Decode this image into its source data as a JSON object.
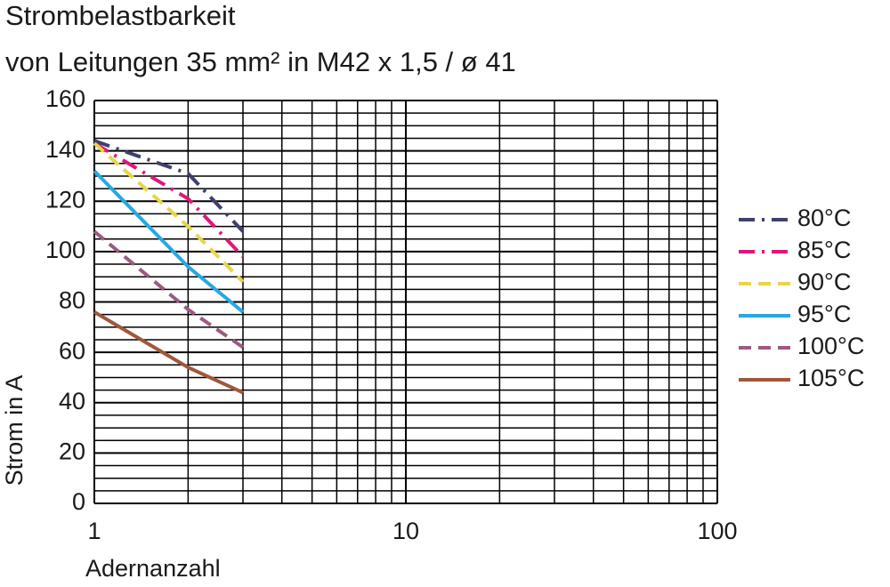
{
  "chart_data": {
    "type": "line",
    "title": "Strombelastbarkeit",
    "subtitle": "von Leitungen 35 mm² in M42 x 1,5 / ø 41",
    "xlabel": "Adernanzahl",
    "ylabel": "Strom in A",
    "xscale": "log",
    "xlim": [
      1,
      100
    ],
    "xticks": [
      1,
      10,
      100
    ],
    "xminorticks": [
      2,
      3,
      4,
      5,
      6,
      7,
      8,
      9,
      20,
      30,
      40,
      50,
      60,
      70,
      80,
      90
    ],
    "ylim": [
      0,
      160
    ],
    "yticks": [
      0,
      20,
      40,
      60,
      80,
      100,
      120,
      140,
      160
    ],
    "yminorticks": [
      5,
      10,
      15,
      25,
      30,
      35,
      45,
      50,
      55,
      65,
      70,
      75,
      85,
      90,
      95,
      105,
      110,
      115,
      125,
      130,
      135,
      145,
      150,
      155
    ],
    "grid": true,
    "legend": "right",
    "x": [
      1,
      2,
      3
    ],
    "series": [
      {
        "name": "80°C",
        "color": "#3e3f6d",
        "dash": "dash-dot",
        "values": [
          144,
          131,
          108
        ]
      },
      {
        "name": "85°C",
        "color": "#e0177a",
        "dash": "dash-dot",
        "values": [
          143,
          121,
          98
        ]
      },
      {
        "name": "90°C",
        "color": "#e8d44a",
        "dash": "dash",
        "values": [
          143,
          110,
          88
        ]
      },
      {
        "name": "95°C",
        "color": "#29a8e0",
        "dash": "solid",
        "values": [
          132,
          94,
          76
        ]
      },
      {
        "name": "100°C",
        "color": "#9c5a82",
        "dash": "dash",
        "values": [
          108,
          77,
          62
        ]
      },
      {
        "name": "105°C",
        "color": "#a0573a",
        "dash": "solid",
        "values": [
          76,
          54,
          44
        ]
      }
    ]
  }
}
